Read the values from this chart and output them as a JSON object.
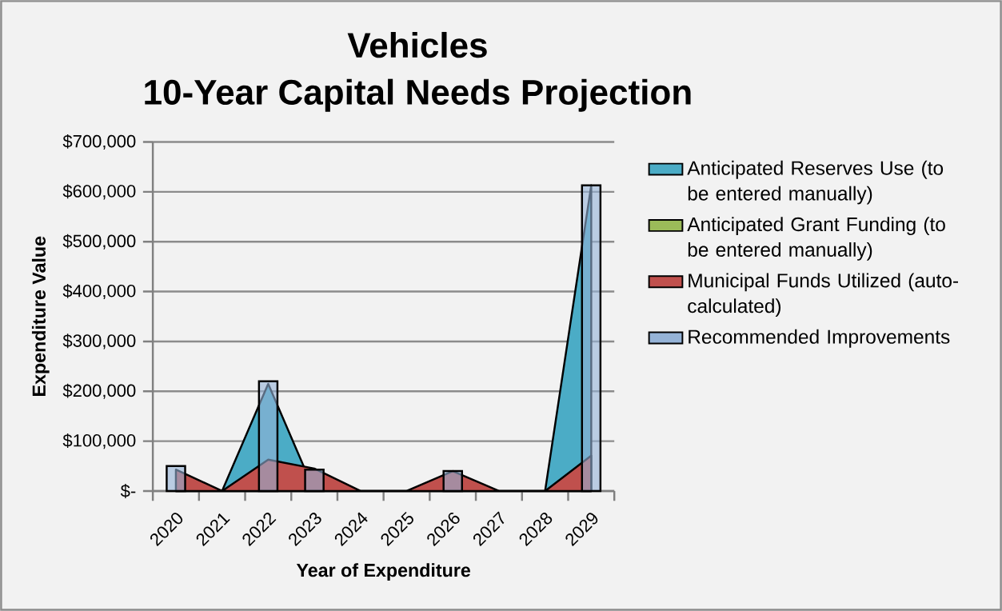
{
  "chart_data": {
    "type": "area",
    "title": "Vehicles",
    "subtitle": "10-Year Capital Needs Projection",
    "xlabel": "Year of Expenditure",
    "ylabel": "Expenditure Value",
    "categories": [
      "2020",
      "2021",
      "2022",
      "2023",
      "2024",
      "2025",
      "2026",
      "2027",
      "2028",
      "2029"
    ],
    "series": [
      {
        "name": "Anticipated Reserves Use (to be entered manually)",
        "color": "#4bacc6",
        "values": [
          0,
          0,
          215000,
          0,
          0,
          0,
          0,
          0,
          0,
          613000
        ]
      },
      {
        "name": "Anticipated Grant Funding (to be entered manually)",
        "color": "#9bbb59",
        "values": [
          null,
          null,
          null,
          null,
          null,
          null,
          null,
          null,
          null,
          null
        ]
      },
      {
        "name": "Municipal Funds Utilized (auto-calculated)",
        "color": "#c0504d",
        "values": [
          43000,
          0,
          63000,
          45000,
          0,
          0,
          40000,
          0,
          0,
          71000
        ]
      },
      {
        "name": "Recommended Improvements",
        "type": "bar",
        "color": "#95b3d7",
        "values": [
          50000,
          null,
          220000,
          43000,
          null,
          null,
          40000,
          null,
          null,
          613000
        ]
      }
    ],
    "ylim": [
      0,
      700000
    ],
    "yticks": [
      {
        "value": 0,
        "label": "$-"
      },
      {
        "value": 100000,
        "label": "$100,000"
      },
      {
        "value": 200000,
        "label": "$200,000"
      },
      {
        "value": 300000,
        "label": "$300,000"
      },
      {
        "value": 400000,
        "label": "$400,000"
      },
      {
        "value": 500000,
        "label": "$500,000"
      },
      {
        "value": 600000,
        "label": "$600,000"
      },
      {
        "value": 700000,
        "label": "$700,000"
      }
    ],
    "grid": "y",
    "legend": "right"
  }
}
